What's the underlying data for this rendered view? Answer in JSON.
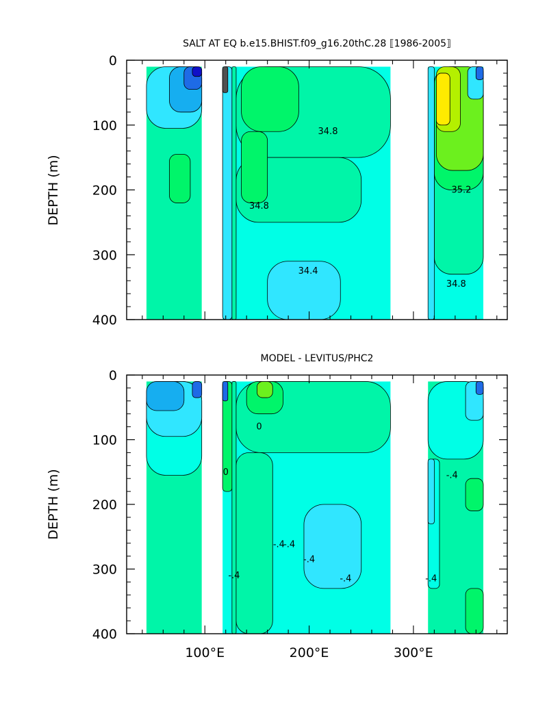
{
  "chart_data": [
    {
      "type": "heatmap",
      "title": "SALT AT EQ b.e15.BHIST.f09_g16.20thC.28 ⟦1986-2005⟧",
      "ylabel": "DEPTH (m)",
      "xlabel": "",
      "xlim": [
        25,
        390
      ],
      "ylim": [
        400,
        0
      ],
      "yticks": [
        0,
        100,
        200,
        300,
        400
      ],
      "xticks": [
        100,
        200,
        300
      ],
      "grid": false,
      "fill_levels": [
        {
          "min": 33.6,
          "max": 33.8,
          "color": "#1010c8"
        },
        {
          "min": 33.8,
          "max": 34.0,
          "color": "#1e6be6"
        },
        {
          "min": 34.0,
          "max": 34.2,
          "color": "#16aef0"
        },
        {
          "min": 34.2,
          "max": 34.4,
          "color": "#30e6ff"
        },
        {
          "min": 34.4,
          "max": 34.6,
          "color": "#00ffe6"
        },
        {
          "min": 34.6,
          "max": 34.8,
          "color": "#00f5a8"
        },
        {
          "min": 34.8,
          "max": 35.0,
          "color": "#00f56a"
        },
        {
          "min": 35.0,
          "max": 35.2,
          "color": "#6cf01e"
        },
        {
          "min": 35.2,
          "max": 35.4,
          "color": "#b4f000"
        },
        {
          "min": 35.4,
          "max": 35.8,
          "color": "#ffeb00"
        }
      ],
      "regions": [
        {
          "basin": "Indian",
          "x": [
            44,
            97
          ],
          "depth": [
            10,
            400
          ],
          "base": "#00f5a8",
          "patches": [
            {
              "x": [
                44,
                97
              ],
              "depth": [
                10,
                105
              ],
              "color": "#30e6ff"
            },
            {
              "x": [
                66,
                97
              ],
              "depth": [
                10,
                80
              ],
              "color": "#16aef0"
            },
            {
              "x": [
                80,
                97
              ],
              "depth": [
                10,
                45
              ],
              "color": "#1e6be6"
            },
            {
              "x": [
                88,
                97
              ],
              "depth": [
                10,
                25
              ],
              "color": "#1010c8"
            },
            {
              "x": [
                66,
                86
              ],
              "depth": [
                145,
                220
              ],
              "color": "#00f56a"
            }
          ]
        },
        {
          "basin": "Pacific",
          "x": [
            117,
            278
          ],
          "depth": [
            10,
            400
          ],
          "base": "#00ffe6",
          "patches": [
            {
              "x": [
                117,
                126
              ],
              "depth": [
                10,
                400
              ],
              "color": "#30e6ff"
            },
            {
              "x": [
                126,
                130
              ],
              "depth": [
                10,
                400
              ],
              "color": "#00f5a8"
            },
            {
              "x": [
                130,
                278
              ],
              "depth": [
                10,
                150
              ],
              "color": "#00f5a8"
            },
            {
              "x": [
                130,
                250
              ],
              "depth": [
                150,
                250
              ],
              "color": "#00f5a8"
            },
            {
              "x": [
                135,
                190
              ],
              "depth": [
                10,
                110
              ],
              "color": "#00f56a"
            },
            {
              "x": [
                135,
                160
              ],
              "depth": [
                110,
                220
              ],
              "color": "#00f56a"
            },
            {
              "x": [
                160,
                230
              ],
              "depth": [
                310,
                400
              ],
              "color": "#30e6ff"
            },
            {
              "x": [
                117,
                122
              ],
              "depth": [
                10,
                50
              ],
              "color": "#505050"
            }
          ]
        },
        {
          "basin": "Atlantic",
          "x": [
            314,
            367
          ],
          "depth": [
            10,
            400
          ],
          "base": "#00ffe6",
          "patches": [
            {
              "x": [
                320,
                367
              ],
              "depth": [
                10,
                330
              ],
              "color": "#00f5a8"
            },
            {
              "x": [
                320,
                367
              ],
              "depth": [
                10,
                200
              ],
              "color": "#00f56a"
            },
            {
              "x": [
                322,
                367
              ],
              "depth": [
                10,
                170
              ],
              "color": "#6cf01e"
            },
            {
              "x": [
                322,
                345
              ],
              "depth": [
                10,
                110
              ],
              "color": "#b4f000"
            },
            {
              "x": [
                322,
                335
              ],
              "depth": [
                20,
                100
              ],
              "color": "#ffeb00"
            },
            {
              "x": [
                352,
                367
              ],
              "depth": [
                10,
                60
              ],
              "color": "#30e6ff"
            },
            {
              "x": [
                360,
                367
              ],
              "depth": [
                10,
                30
              ],
              "color": "#1e6be6"
            },
            {
              "x": [
                314,
                320
              ],
              "depth": [
                10,
                400
              ],
              "color": "#30e6ff"
            }
          ]
        }
      ],
      "contour_labels": [
        {
          "text": "34.8",
          "x": 218,
          "depth": 110
        },
        {
          "text": "34.8",
          "x": 152,
          "depth": 225
        },
        {
          "text": "34.4",
          "x": 199,
          "depth": 325
        },
        {
          "text": "35.2",
          "x": 346,
          "depth": 200
        },
        {
          "text": "34.8",
          "x": 341,
          "depth": 345
        }
      ]
    },
    {
      "type": "heatmap",
      "title": "MODEL - LEVITUS/PHC2",
      "ylabel": "DEPTH (m)",
      "xlabel": "",
      "xlim": [
        25,
        390
      ],
      "ylim": [
        400,
        0
      ],
      "yticks": [
        0,
        100,
        200,
        300,
        400
      ],
      "xticks": [
        100,
        200,
        300
      ],
      "xticklabels": [
        "100°E",
        "200°E",
        "300°E"
      ],
      "grid": false,
      "fill_levels": [
        {
          "min": -1.6,
          "max": -1.2,
          "color": "#1010c8"
        },
        {
          "min": -1.2,
          "max": -0.8,
          "color": "#1e6be6"
        },
        {
          "min": -0.8,
          "max": -0.4,
          "color": "#16aef0"
        },
        {
          "min": -0.4,
          "max": -0.2,
          "color": "#30e6ff"
        },
        {
          "min": -0.2,
          "max": 0.0,
          "color": "#00ffe6"
        },
        {
          "min": 0.0,
          "max": 0.2,
          "color": "#00f5a8"
        },
        {
          "min": 0.2,
          "max": 0.4,
          "color": "#00f56a"
        },
        {
          "min": 0.4,
          "max": 0.8,
          "color": "#6cf01e"
        },
        {
          "min": 0.8,
          "max": 1.2,
          "color": "#b4f000"
        }
      ],
      "regions": [
        {
          "basin": "Indian",
          "x": [
            44,
            97
          ],
          "depth": [
            10,
            400
          ],
          "base": "#00f5a8",
          "patches": [
            {
              "x": [
                44,
                97
              ],
              "depth": [
                10,
                155
              ],
              "color": "#00ffe6"
            },
            {
              "x": [
                44,
                97
              ],
              "depth": [
                10,
                95
              ],
              "color": "#30e6ff"
            },
            {
              "x": [
                44,
                80
              ],
              "depth": [
                10,
                55
              ],
              "color": "#16aef0"
            },
            {
              "x": [
                88,
                97
              ],
              "depth": [
                10,
                35
              ],
              "color": "#1e6be6"
            }
          ]
        },
        {
          "basin": "Pacific",
          "x": [
            117,
            278
          ],
          "depth": [
            10,
            400
          ],
          "base": "#00ffe6",
          "patches": [
            {
              "x": [
                117,
                126
              ],
              "depth": [
                10,
                180
              ],
              "color": "#00f56a"
            },
            {
              "x": [
                126,
                130
              ],
              "depth": [
                10,
                400
              ],
              "color": "#00f5a8"
            },
            {
              "x": [
                130,
                278
              ],
              "depth": [
                10,
                120
              ],
              "color": "#00f5a8"
            },
            {
              "x": [
                140,
                175
              ],
              "depth": [
                10,
                60
              ],
              "color": "#00f56a"
            },
            {
              "x": [
                150,
                165
              ],
              "depth": [
                10,
                35
              ],
              "color": "#6cf01e"
            },
            {
              "x": [
                117,
                122
              ],
              "depth": [
                10,
                40
              ],
              "color": "#1e6be6"
            },
            {
              "x": [
                130,
                165
              ],
              "depth": [
                120,
                400
              ],
              "color": "#00f5a8"
            },
            {
              "x": [
                195,
                250
              ],
              "depth": [
                200,
                330
              ],
              "color": "#30e6ff"
            }
          ]
        },
        {
          "basin": "Atlantic",
          "x": [
            314,
            367
          ],
          "depth": [
            10,
            400
          ],
          "base": "#00f5a8",
          "patches": [
            {
              "x": [
                314,
                367
              ],
              "depth": [
                10,
                130
              ],
              "color": "#00ffe6"
            },
            {
              "x": [
                314,
                325
              ],
              "depth": [
                130,
                330
              ],
              "color": "#00ffe6"
            },
            {
              "x": [
                314,
                320
              ],
              "depth": [
                130,
                230
              ],
              "color": "#30e6ff"
            },
            {
              "x": [
                350,
                367
              ],
              "depth": [
                10,
                70
              ],
              "color": "#30e6ff"
            },
            {
              "x": [
                360,
                367
              ],
              "depth": [
                10,
                30
              ],
              "color": "#1e6be6"
            },
            {
              "x": [
                350,
                367
              ],
              "depth": [
                160,
                210
              ],
              "color": "#00f56a"
            },
            {
              "x": [
                350,
                367
              ],
              "depth": [
                330,
                400
              ],
              "color": "#00f56a"
            }
          ]
        }
      ],
      "contour_labels": [
        {
          "text": "0",
          "x": 152,
          "depth": 80
        },
        {
          "text": "0",
          "x": 120,
          "depth": 150
        },
        {
          "text": "-.4",
          "x": 171,
          "depth": 262
        },
        {
          "text": "-.4",
          "x": 181,
          "depth": 262
        },
        {
          "text": "-.4",
          "x": 200,
          "depth": 285
        },
        {
          "text": "-.4",
          "x": 128,
          "depth": 310
        },
        {
          "text": "-.4",
          "x": 235,
          "depth": 315
        },
        {
          "text": "-.4",
          "x": 337,
          "depth": 155
        },
        {
          "text": "-.4",
          "x": 317,
          "depth": 315
        }
      ]
    }
  ]
}
